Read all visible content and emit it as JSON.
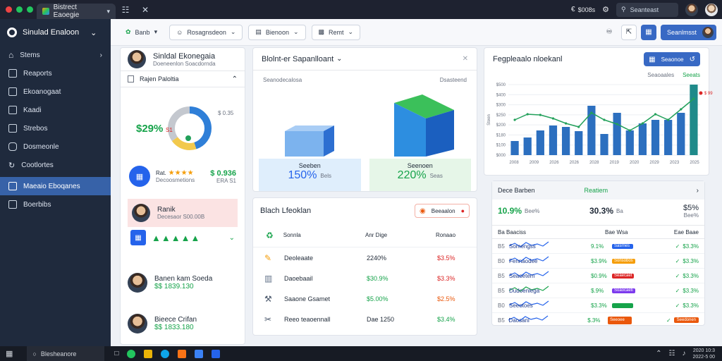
{
  "chrome": {
    "tab_title": "Bistrect Eaoegie",
    "balance": "$008s",
    "search_placeholder": "Seanteast"
  },
  "sidebar": {
    "brand": "Sinulad Enaloon",
    "items": [
      {
        "label": "Stems"
      },
      {
        "label": "Reaports"
      },
      {
        "label": "Ekoanogaat"
      },
      {
        "label": "Kaadi"
      },
      {
        "label": "Strebos"
      },
      {
        "label": "Dosmeonle"
      },
      {
        "label": "Cootlortes"
      },
      {
        "label": "Maeaio Eboqanes"
      },
      {
        "label": "Boerbibs"
      }
    ]
  },
  "toolbar": {
    "btn1": "Banb",
    "btn2": "Rosagnsdeon",
    "btn3": "Bienoon",
    "btn4": "Remt",
    "primary": "Seanlmsst"
  },
  "profile": {
    "name": "Sinldal Ekonegaia",
    "subtitle": "Doeneenlon Soacdornda",
    "section_title": "Rajen Paloltia",
    "donut_pct": "$29%",
    "donut_sub": "S1",
    "donut_value": "$ 0.35",
    "donut_values": [
      45,
      20,
      35
    ],
    "rating_label": "Rat.",
    "rating_stars": 4,
    "rating_sub": "Decoosmetions",
    "rating_value": "$ 0.936",
    "rating_value_sub": "ERA S1",
    "highlight_name": "Ranik",
    "highlight_sub": "Decesaor S00.00B",
    "person2_name": "Banen kam Soeda",
    "person2_value": "$$ 1839.130",
    "person3_name": "Bieece Crifan",
    "person3_value": "$$ 1833.180"
  },
  "chart_main": {
    "title": "Blolnt-er Sapanlloant",
    "legend_left": "Seanodecalosa",
    "legend_right": "Dsasteend",
    "left_label": "Seeben",
    "left_value": "150%",
    "left_sub": "Bels",
    "right_label": "Seenoen",
    "right_value": "220%",
    "right_sub": "Seas"
  },
  "recent": {
    "title": "Blach Lfeoklan",
    "button": "Beeaalon",
    "header_label": "Sonnla",
    "header_mid": "Anr Dige",
    "header_right": "Ronaao",
    "rows": [
      {
        "label": "Deoleaate",
        "mid": "2240%",
        "right": "$3.5%"
      },
      {
        "label": "Daoebaail",
        "mid": "$30.9%",
        "right": "$3.3%"
      },
      {
        "label": "Saaone Gsamet",
        "mid": "$5.00%",
        "right": "$2.5%"
      },
      {
        "label": "Reeo teaoennall",
        "mid": "Dae 1250",
        "right": "$3.4%"
      }
    ]
  },
  "performance": {
    "title": "Fegpleaalo nloekanl",
    "button": "Seaonoe",
    "legend_left": "Seaoaales",
    "legend_right": "Seeats",
    "y_ticks": [
      "$500",
      "$400",
      "$300",
      "$250",
      "$200",
      "$180",
      "$100",
      "$000"
    ],
    "y_axis_label": "Steen",
    "x_ticks": [
      "2008",
      "2009",
      "2026",
      "2026",
      "2028",
      "2019",
      "2020",
      "2029",
      "2023",
      "2025"
    ],
    "bars": [
      20,
      25,
      35,
      42,
      40,
      34,
      70,
      30,
      60,
      35,
      45,
      50,
      50,
      60,
      100
    ],
    "line": [
      50,
      58,
      57,
      52,
      45,
      40,
      60,
      50,
      44,
      35,
      45,
      58,
      50,
      65,
      80
    ],
    "red_point_label": "$ 99",
    "bars_color": "#2c6fbf",
    "line_color": "#22a05a"
  },
  "stats": {
    "header_left": "Dece Barben",
    "header_mid": "Reatiem",
    "top_left": "10.9%",
    "top_left_sub": "Bee%",
    "top_mid": "30.3%",
    "top_mid_sub": "Ba",
    "top_right": "$5%",
    "top_right_sub": "Bee%",
    "col1": "Ba Baaciss",
    "col2": "Bae Wsa",
    "col3": "Eae Baae",
    "rows": [
      {
        "code": "B5",
        "label": "Somengss",
        "pct": "9.1%",
        "bar": "Sasrnes",
        "right": "$3.3%",
        "bar_color": "#2563eb",
        "spark": "#2563eb"
      },
      {
        "code": "B0",
        "label": "Fennaodee",
        "pct": "$3.9%",
        "bar": "Sonsobos",
        "right": "$3.3%",
        "bar_color": "#f59e0b",
        "spark": "#2563eb"
      },
      {
        "code": "B5",
        "label": "Seaoetem",
        "pct": "$0.9%",
        "bar": "Seaecaet",
        "right": "$3.3%",
        "bar_color": "#dc2626",
        "spark": "#2563eb"
      },
      {
        "code": "B5",
        "label": "Dudoenlega",
        "pct": "$.9%",
        "bar": "Soaocaeti",
        "right": "$3.3%",
        "bar_color": "#7c3aed",
        "spark": "#16a34a"
      },
      {
        "code": "B0",
        "label": "Seeotoes",
        "pct": "$3.3%",
        "bar": "",
        "right": "$3.3%",
        "bar_color": "#16a34a",
        "spark": "#2563eb"
      },
      {
        "code": "B5",
        "label": "Daosanl",
        "pct": "$.3%",
        "bar": "Seeoee",
        "right": "Seedonen",
        "bar_color": "#ea580c",
        "spark": "#2563eb"
      }
    ]
  },
  "taskbar": {
    "search": "Blesheanore",
    "time": "2020 10:3",
    "date": "2022-5 00"
  }
}
